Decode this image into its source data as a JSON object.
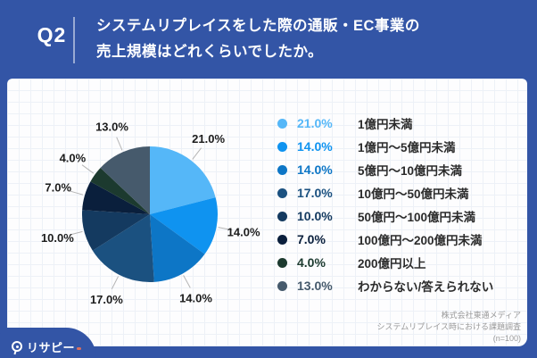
{
  "header": {
    "q_label": "Q2",
    "title_line1": "システムリプレイスをした際の通販・EC事業の",
    "title_line2": "売上規模はどれくらいでしたか。"
  },
  "chart_data": {
    "type": "pie",
    "title": "Q2 システムリプレイスをした際の通販・EC事業の売上規模はどれくらいでしたか。",
    "unit": "%",
    "start_angle_deg": 0,
    "direction": "clockwise",
    "legend_position": "right",
    "categories": [
      "1億円未満",
      "1億円～5億円未満",
      "5億円～10億円未満",
      "10億円～50億円未満",
      "50億円～100億円未満",
      "100億円～200億円未満",
      "200億円以上",
      "わからない/答えられない"
    ],
    "values": [
      21.0,
      14.0,
      14.0,
      17.0,
      10.0,
      7.0,
      4.0,
      13.0
    ],
    "labels": [
      "21.0%",
      "14.0%",
      "14.0%",
      "17.0%",
      "10.0%",
      "7.0%",
      "4.0%",
      "13.0%"
    ],
    "colors": [
      "#55B7F8",
      "#0F93F0",
      "#0D76C6",
      "#1B5180",
      "#143A60",
      "#0A1F3C",
      "#1C3A2F",
      "#465A6C"
    ]
  },
  "footer": {
    "source_line1": "株式会社東通メディア",
    "source_line2": "システムリプレイス時における課題調査",
    "source_line3": "(n=100)"
  },
  "logo": {
    "text": "リサピー"
  },
  "colors": {
    "frame": "#3355A6",
    "panel_bg": "#FDFDFE",
    "grid": "#EDF1F7",
    "pie_label_text": "#1C1C1C",
    "leader_line": "#B5B5B5",
    "category_text": "#2B2B2B",
    "source_text": "#999999",
    "logo_dash": "#D96F5F"
  }
}
